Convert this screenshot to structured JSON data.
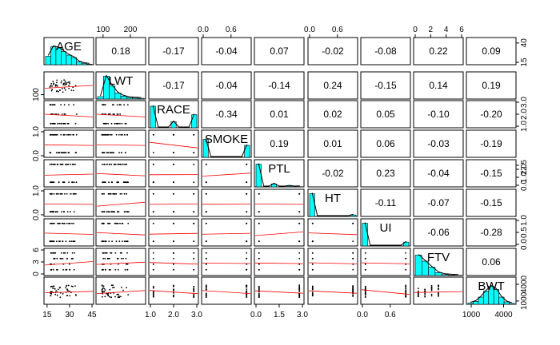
{
  "chart_data": {
    "type": "scatter",
    "variables": [
      "AGE",
      "LWT",
      "RACE",
      "SMOKE",
      "PTL",
      "HT",
      "UI",
      "FTV",
      "BWT"
    ],
    "correlation_labels": [
      [
        "",
        "0.18",
        "-0.17",
        "-0.04",
        "0.07",
        "-0.02",
        "-0.08",
        "0.22",
        "0.09"
      ],
      [
        "",
        "",
        "-0.17",
        "-0.04",
        "-0.14",
        "0.24",
        "-0.15",
        "0.14",
        "0.19"
      ],
      [
        "",
        "",
        "",
        "-0.34",
        "0.01",
        "0.02",
        "0.05",
        "-0.10",
        "-0.20"
      ],
      [
        "",
        "",
        "",
        "",
        "0.19",
        "0.01",
        "0.06",
        "-0.03",
        "-0.19"
      ],
      [
        "",
        "",
        "",
        "",
        "",
        "-0.02",
        "0.23",
        "-0.04",
        "-0.15"
      ],
      [
        "",
        "",
        "",
        "",
        "",
        "",
        "-0.11",
        "-0.07",
        "-0.15"
      ],
      [
        "",
        "",
        "",
        "",
        "",
        "",
        "",
        "-0.06",
        "-0.28"
      ],
      [
        "",
        "",
        "",
        "",
        "",
        "",
        "",
        "",
        "0.06"
      ],
      [
        "",
        "",
        "",
        "",
        "",
        "",
        "",
        "",
        ""
      ]
    ],
    "ranges": [
      [
        14,
        45
      ],
      [
        80,
        250
      ],
      [
        1,
        3
      ],
      [
        0,
        1
      ],
      [
        0,
        3
      ],
      [
        0,
        1
      ],
      [
        0,
        1
      ],
      [
        0,
        6
      ],
      [
        700,
        5000
      ]
    ],
    "axes": {
      "top": [
        {
          "col": 1,
          "ticks": [
            100,
            200
          ],
          "labels": [
            "100",
            "200"
          ]
        },
        {
          "col": 3,
          "ticks": [
            0,
            0.6
          ],
          "labels": [
            "0.0",
            "0.6"
          ]
        },
        {
          "col": 5,
          "ticks": [
            0,
            0.6
          ],
          "labels": [
            "0.0",
            "0.6"
          ]
        },
        {
          "col": 7,
          "ticks": [
            0,
            2,
            4,
            6
          ],
          "labels": [
            "0",
            "2",
            "4",
            "6"
          ]
        }
      ],
      "bottom": [
        {
          "col": 0,
          "ticks": [
            15,
            30,
            45
          ],
          "labels": [
            "15",
            "30",
            "45"
          ]
        },
        {
          "col": 2,
          "ticks": [
            1,
            2,
            3
          ],
          "labels": [
            "1.0",
            "2.0",
            "3.0"
          ]
        },
        {
          "col": 4,
          "ticks": [
            0,
            1.5,
            3
          ],
          "labels": [
            "0.0",
            "1.5",
            "3.0"
          ]
        },
        {
          "col": 6,
          "ticks": [
            0,
            0.6
          ],
          "labels": [
            "0.0",
            "0.6"
          ]
        },
        {
          "col": 8,
          "ticks": [
            1000,
            4000
          ],
          "labels": [
            "1000",
            "4000"
          ]
        }
      ],
      "left": [
        {
          "row": 1,
          "ticks": [
            100
          ],
          "labels": [
            "100"
          ]
        },
        {
          "row": 3,
          "ticks": [
            0,
            1
          ],
          "labels": [
            "0.0",
            "1.0"
          ]
        },
        {
          "row": 5,
          "ticks": [
            0,
            1
          ],
          "labels": [
            "0.0",
            "1.0"
          ]
        },
        {
          "row": 7,
          "ticks": [
            0,
            3,
            6
          ],
          "labels": [
            "0",
            "3",
            "6"
          ]
        }
      ],
      "right": [
        {
          "row": 0,
          "ticks": [
            15,
            40
          ],
          "labels": [
            "15",
            "40"
          ]
        },
        {
          "row": 2,
          "ticks": [
            1,
            2,
            3
          ],
          "labels": [
            "1.0",
            "2.0",
            "3.0"
          ]
        },
        {
          "row": 4,
          "ticks": [
            0,
            1,
            2,
            2.5
          ],
          "labels": [
            "0.0",
            "1.0",
            "2.0",
            "2.5"
          ]
        },
        {
          "row": 6,
          "ticks": [
            0,
            0.5,
            1
          ],
          "labels": [
            "0.0",
            "0.5",
            "1.0"
          ]
        },
        {
          "row": 8,
          "ticks": [
            1000,
            4000
          ],
          "labels": [
            "1000",
            "4000"
          ]
        }
      ]
    },
    "histograms": [
      [
        0.35,
        0.75,
        0.7,
        0.55,
        0.4,
        0.3,
        0.12,
        0.05,
        0.02
      ],
      [
        0.1,
        0.95,
        0.55,
        0.25,
        0.12,
        0.06,
        0.04,
        0.03
      ],
      [
        0.9,
        0,
        0,
        0,
        0.25,
        0,
        0,
        0,
        0.55
      ],
      [
        0.75,
        0,
        0,
        0,
        0,
        0,
        0,
        0,
        0.5
      ],
      [
        0.95,
        0,
        0,
        0.12,
        0,
        0,
        0.03,
        0,
        0.01
      ],
      [
        0.95,
        0,
        0,
        0,
        0,
        0,
        0,
        0,
        0.06
      ],
      [
        0.95,
        0,
        0,
        0,
        0,
        0,
        0,
        0,
        0.16
      ],
      [
        0.85,
        0.6,
        0.35,
        0.12,
        0.04,
        0.02,
        0.01
      ],
      [
        0.05,
        0.12,
        0.3,
        0.55,
        0.75,
        0.62,
        0.3,
        0.1,
        0.04
      ]
    ],
    "fill_color": "#00ffff",
    "fit_line_color": "#ff0000",
    "point_color": "#000000",
    "grid": false
  }
}
